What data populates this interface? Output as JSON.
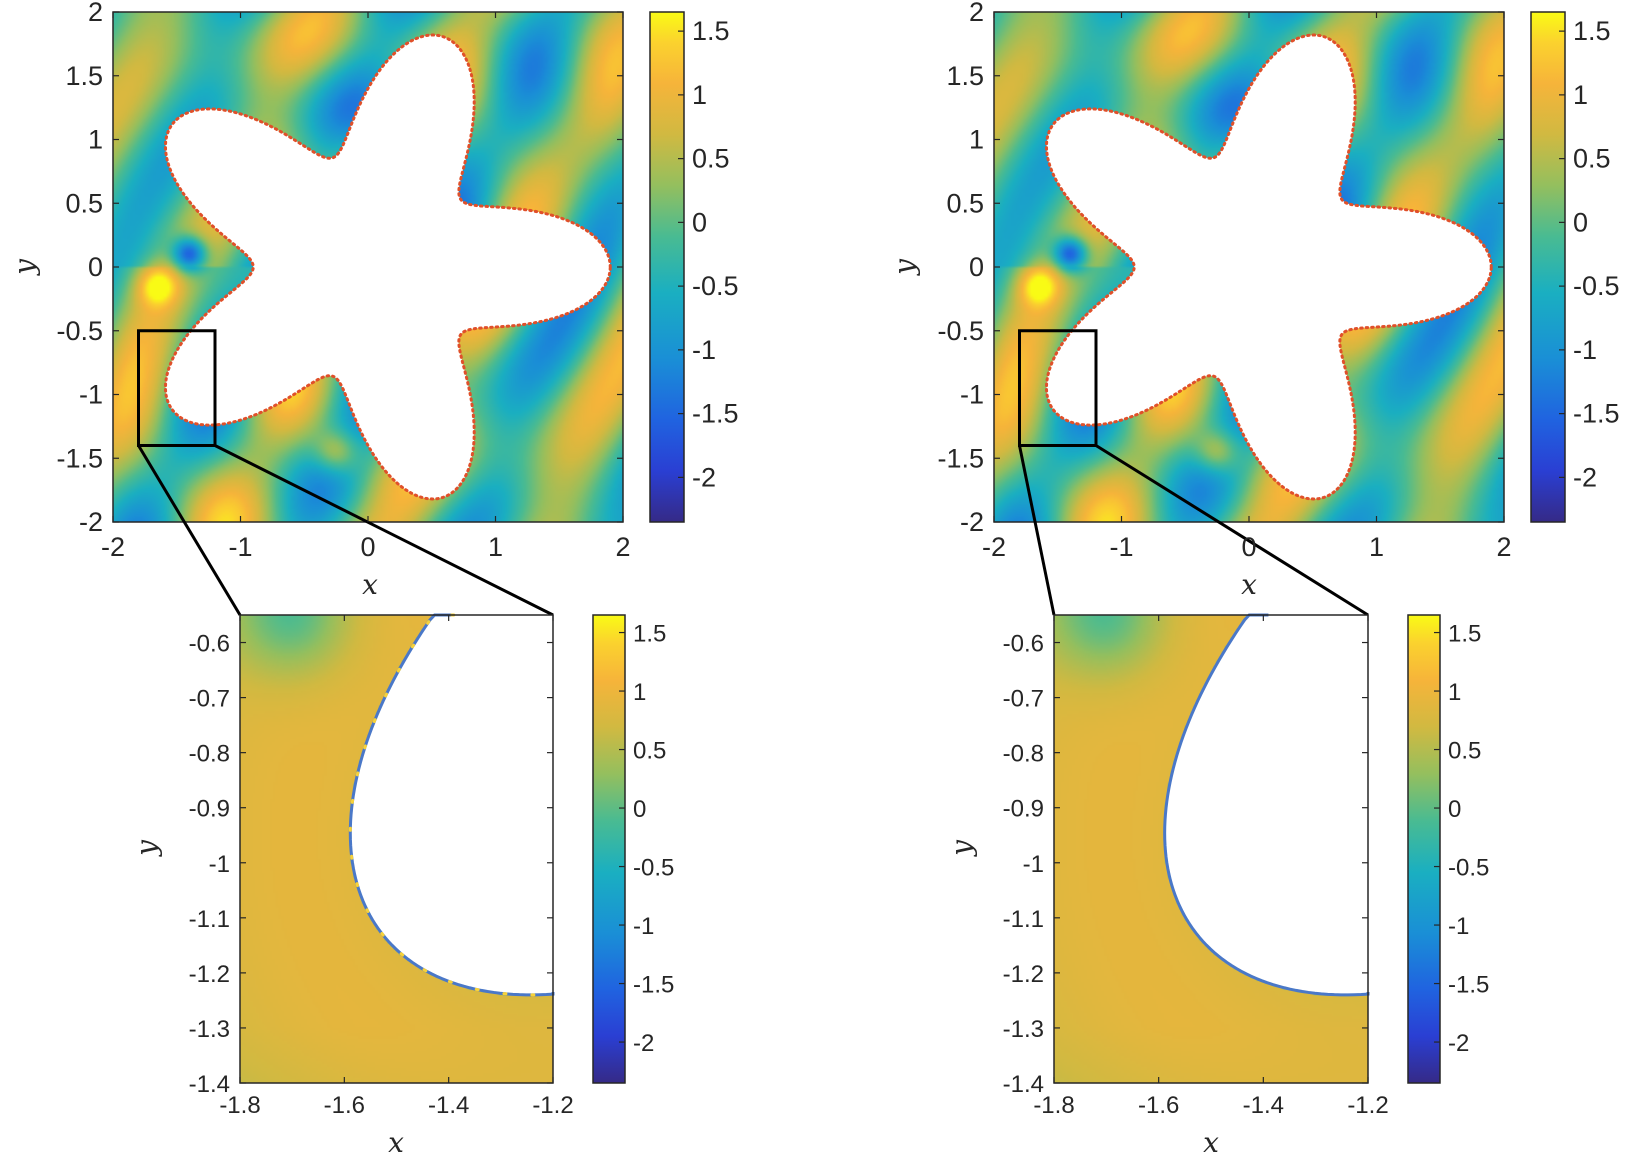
{
  "chart_data": [
    {
      "type": "heatmap",
      "panel": "top-left",
      "title": "",
      "xlabel": "x",
      "ylabel": "y",
      "xlim": [
        -2,
        2
      ],
      "ylim": [
        -2,
        2
      ],
      "xticks": [
        "-2",
        "-1",
        "0",
        "1",
        "2"
      ],
      "yticks": [
        "2",
        "1.5",
        "1",
        "0.5",
        "0",
        "-0.5",
        "-1",
        "-1.5",
        "-2"
      ],
      "colorbar": {
        "range": [
          -2.35,
          1.65
        ],
        "ticks": [
          "1.5",
          "1",
          "0.5",
          "0",
          "-0.5",
          "-1",
          "-1.5",
          "-2"
        ]
      },
      "obstacle": "five-lobed star-shaped scatterer r(t) = 1.4 + 0.5 cos(5t), boundary shown as dotted curve",
      "zoom_box": {
        "x": [
          -1.8,
          -1.2
        ],
        "y": [
          -1.4,
          -0.5
        ]
      }
    },
    {
      "type": "heatmap",
      "panel": "top-right",
      "title": "",
      "xlabel": "x",
      "ylabel": "y",
      "xlim": [
        -2,
        2
      ],
      "ylim": [
        -2,
        2
      ],
      "xticks": [
        "-2",
        "-1",
        "0",
        "1",
        "2"
      ],
      "yticks": [
        "2",
        "1.5",
        "1",
        "0.5",
        "0",
        "-0.5",
        "-1",
        "-1.5",
        "-2"
      ],
      "colorbar": {
        "range": [
          -2.35,
          1.65
        ],
        "ticks": [
          "1.5",
          "1",
          "0.5",
          "0",
          "-0.5",
          "-1",
          "-1.5",
          "-2"
        ]
      },
      "zoom_box": {
        "x": [
          -1.8,
          -1.2
        ],
        "y": [
          -1.4,
          -0.5
        ]
      }
    },
    {
      "type": "heatmap",
      "panel": "bottom-left",
      "title": "",
      "xlabel": "x",
      "ylabel": "y",
      "xlim": [
        -1.8,
        -1.2
      ],
      "ylim": [
        -1.4,
        -0.55
      ],
      "xticks": [
        "-1.8",
        "-1.6",
        "-1.4",
        "-1.2"
      ],
      "yticks": [
        "-0.6",
        "-0.7",
        "-0.8",
        "-0.9",
        "-1",
        "-1.1",
        "-1.2",
        "-1.3",
        "-1.4"
      ],
      "colorbar": {
        "range": [
          -2.35,
          1.65
        ],
        "ticks": [
          "1.5",
          "1",
          "0.5",
          "0",
          "-0.5",
          "-1",
          "-1.5",
          "-2"
        ]
      }
    },
    {
      "type": "heatmap",
      "panel": "bottom-right",
      "title": "",
      "xlabel": "x",
      "ylabel": "y",
      "xlim": [
        -1.8,
        -1.2
      ],
      "ylim": [
        -1.4,
        -0.55
      ],
      "xticks": [
        "-1.8",
        "-1.6",
        "-1.4",
        "-1.2"
      ],
      "yticks": [
        "-0.6",
        "-0.7",
        "-0.8",
        "-0.9",
        "-1",
        "-1.1",
        "-1.2",
        "-1.3",
        "-1.4"
      ],
      "colorbar": {
        "range": [
          -2.35,
          1.65
        ],
        "ticks": [
          "1.5",
          "1",
          "0.5",
          "0",
          "-0.5",
          "-1",
          "-1.5",
          "-2"
        ]
      }
    }
  ],
  "colors": {
    "colormap": [
      "#3e26a8",
      "#2d6ce0",
      "#1e97d3",
      "#24b3a4",
      "#7cbe5b",
      "#c6bb3d",
      "#f3ae3c",
      "#fcd035",
      "#f9fb15"
    ],
    "boundary_dots": "#e0502a",
    "boundary_line": "#4a78c8",
    "axis_color": "#262626"
  }
}
